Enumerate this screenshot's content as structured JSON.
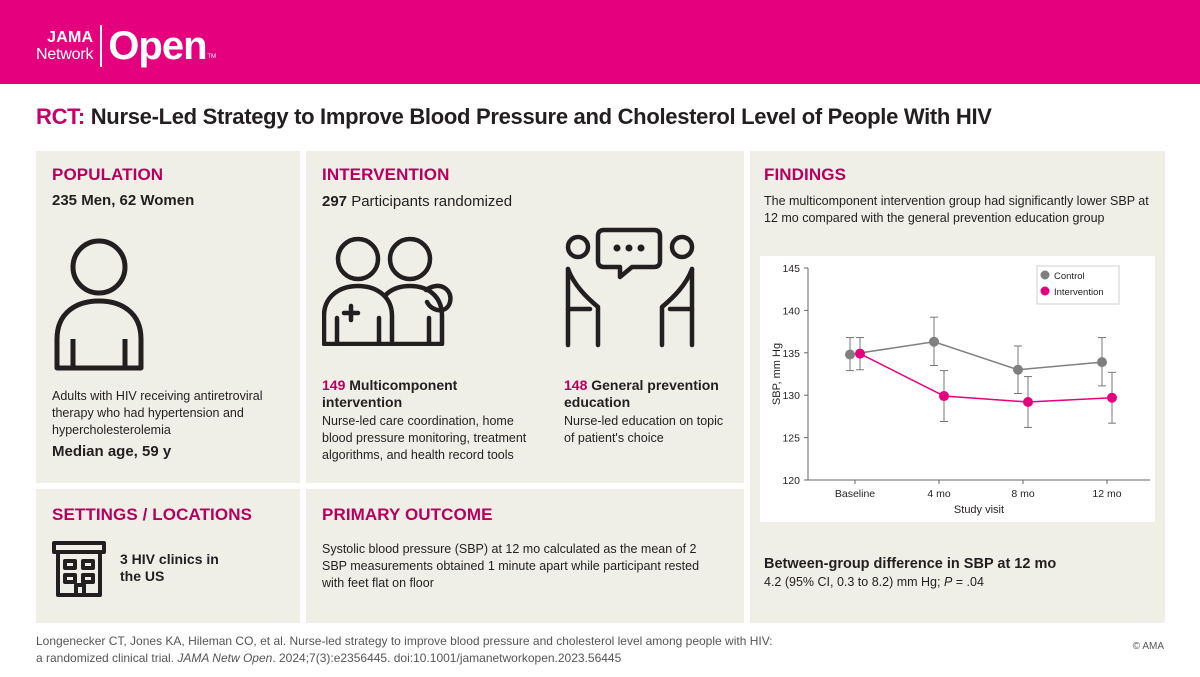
{
  "header": {
    "brand_top": "JAMA",
    "brand_mid": "Network",
    "brand_main": "Open",
    "brand_tm": "TM"
  },
  "title": {
    "prefix": "RCT:",
    "text": "Nurse-Led Strategy to Improve Blood Pressure and Cholesterol Level of People With HIV"
  },
  "population": {
    "heading": "POPULATION",
    "summary": "235 Men, 62 Women",
    "description": "Adults with HIV receiving antiretroviral therapy who had hypertension and hypercholesterolemia",
    "median_age": "Median age, 59 y"
  },
  "intervention": {
    "heading": "INTERVENTION",
    "count": "297",
    "count_label": "Participants randomized",
    "arm1": {
      "count": "149",
      "title": "Multicomponent intervention",
      "desc": "Nurse-led care coordination, home blood pressure monitoring, treatment algorithms, and health record tools"
    },
    "arm2": {
      "count": "148",
      "title": "General prevention education",
      "desc": "Nurse-led education on topic of patient's choice"
    }
  },
  "settings": {
    "heading": "SETTINGS / LOCATIONS",
    "text": "3 HIV clinics in the US"
  },
  "primary": {
    "heading": "PRIMARY OUTCOME",
    "text": "Systolic blood pressure (SBP) at 12 mo calculated as the mean of 2 SBP measurements obtained 1 minute apart while participant rested with feet flat on floor"
  },
  "findings": {
    "heading": "FINDINGS",
    "text": "The multicomponent intervention group had significantly lower SBP at 12 mo compared with the general prevention education group",
    "diff_heading": "Between-group difference in SBP at 12 mo",
    "diff_text": "4.2 (95% CI, 0.3 to 8.2) mm Hg; ",
    "p_label": "P",
    "p_value": " = .04"
  },
  "chart_data": {
    "type": "line",
    "xlabel": "Study visit",
    "ylabel": "SBP, mm Hg",
    "categories": [
      "Baseline",
      "4 mo",
      "8 mo",
      "12 mo"
    ],
    "ylim": [
      120,
      145
    ],
    "yticks": [
      120,
      125,
      130,
      135,
      140,
      145
    ],
    "legend_position": "top-right",
    "series": [
      {
        "name": "Control",
        "color": "#7f7f7f",
        "values": [
          134.8,
          136.3,
          133.0,
          133.9
        ],
        "lower": [
          132.9,
          133.5,
          130.2,
          131.1
        ],
        "upper": [
          136.8,
          139.2,
          135.8,
          136.8
        ]
      },
      {
        "name": "Intervention",
        "color": "#e5007e",
        "values": [
          134.9,
          129.9,
          129.2,
          129.7
        ],
        "lower": [
          133.0,
          126.9,
          126.2,
          126.7
        ],
        "upper": [
          136.8,
          132.9,
          132.2,
          132.7
        ]
      }
    ]
  },
  "citation": {
    "line1": "Longenecker CT, Jones KA, Hileman CO, et al. Nurse-led strategy to improve blood pressure and cholesterol level among people with HIV:",
    "line2a": "a randomized clinical trial. ",
    "journal": "JAMA Netw Open",
    "line2b": ". 2024;7(3):e2356445. doi:10.1001/jamanetworkopen.2023.56445"
  },
  "copyright": "© AMA",
  "colors": {
    "brand": "#e5007e",
    "heading": "#b5005e",
    "panel": "#efeee7",
    "control": "#7f7f7f"
  }
}
